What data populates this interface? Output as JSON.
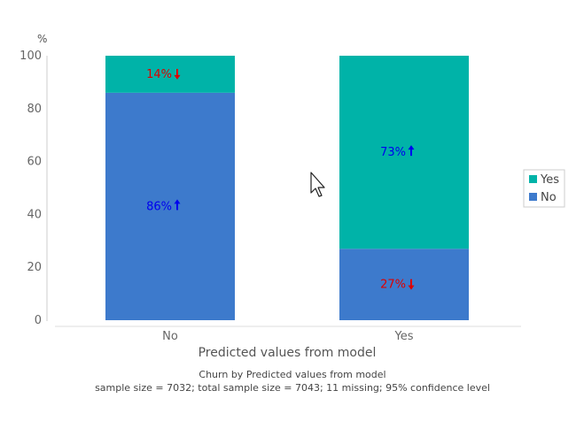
{
  "chart_data": {
    "type": "bar",
    "stacked": true,
    "categories": [
      "No",
      "Yes"
    ],
    "series": [
      {
        "name": "No",
        "color": "#3d7acc",
        "values": [
          86,
          27
        ],
        "labels": [
          "86%",
          "27%"
        ],
        "arrows": [
          "up",
          "down"
        ]
      },
      {
        "name": "Yes",
        "color": "#00b3a8",
        "values": [
          14,
          73
        ],
        "labels": [
          "14%",
          "73%"
        ],
        "arrows": [
          "down",
          "up"
        ]
      }
    ],
    "ylim": [
      0,
      100
    ],
    "yticks": [
      0,
      20,
      40,
      60,
      80,
      100
    ],
    "ytick_labels": [
      "0",
      "20",
      "40",
      "60",
      "80",
      "100"
    ],
    "yunit": "%",
    "xlabel": "Predicted values from model",
    "ylabel": "",
    "legend": {
      "position": "right",
      "entries": [
        "Yes",
        "No"
      ]
    },
    "footnote_line1": "Churn by Predicted values from model",
    "footnote_line2": "sample size = 7032; total sample size = 7043; 11 missing; 95% confidence level",
    "arrow_up_color": "#0000ee",
    "arrow_down_color": "#dd0000"
  }
}
